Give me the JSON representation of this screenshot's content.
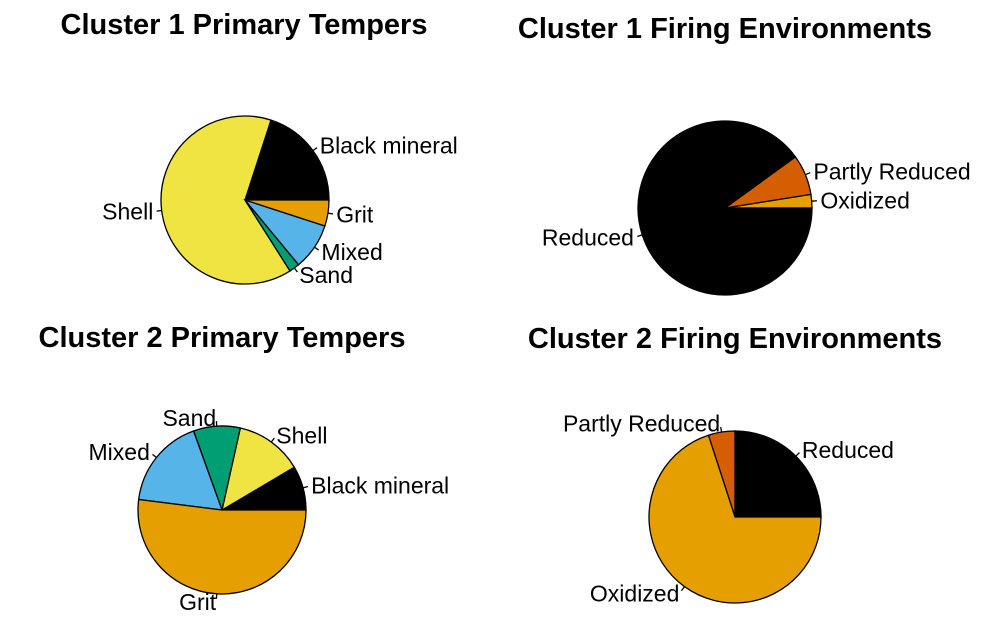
{
  "chart_data": [
    {
      "type": "pie",
      "title": "Cluster 1 Primary Tempers",
      "labels": [
        "Black mineral",
        "Shell",
        "Sand",
        "Mixed",
        "Grit"
      ],
      "values": [
        20,
        64,
        2,
        9,
        5
      ],
      "colors": [
        "#000000",
        "#F0E442",
        "#009E73",
        "#56B4E9",
        "#E69F00"
      ]
    },
    {
      "type": "pie",
      "title": "Cluster 1 Firing Environments",
      "labels": [
        "Oxidized",
        "Partly Reduced",
        "Reduced"
      ],
      "values": [
        2.5,
        7.5,
        90
      ],
      "colors": [
        "#E69F00",
        "#D55E00",
        "#000000"
      ]
    },
    {
      "type": "pie",
      "title": "Cluster 2 Primary Tempers",
      "labels": [
        "Black mineral",
        "Shell",
        "Sand",
        "Mixed",
        "Grit"
      ],
      "values": [
        8.5,
        13,
        9,
        17.5,
        52
      ],
      "colors": [
        "#000000",
        "#F0E442",
        "#009E73",
        "#56B4E9",
        "#E69F00"
      ]
    },
    {
      "type": "pie",
      "title": "Cluster 2 Firing Environments",
      "labels": [
        "Reduced",
        "Partly Reduced",
        "Oxidized"
      ],
      "values": [
        25,
        5,
        70
      ],
      "colors": [
        "#000000",
        "#D55E00",
        "#E69F00"
      ]
    }
  ]
}
